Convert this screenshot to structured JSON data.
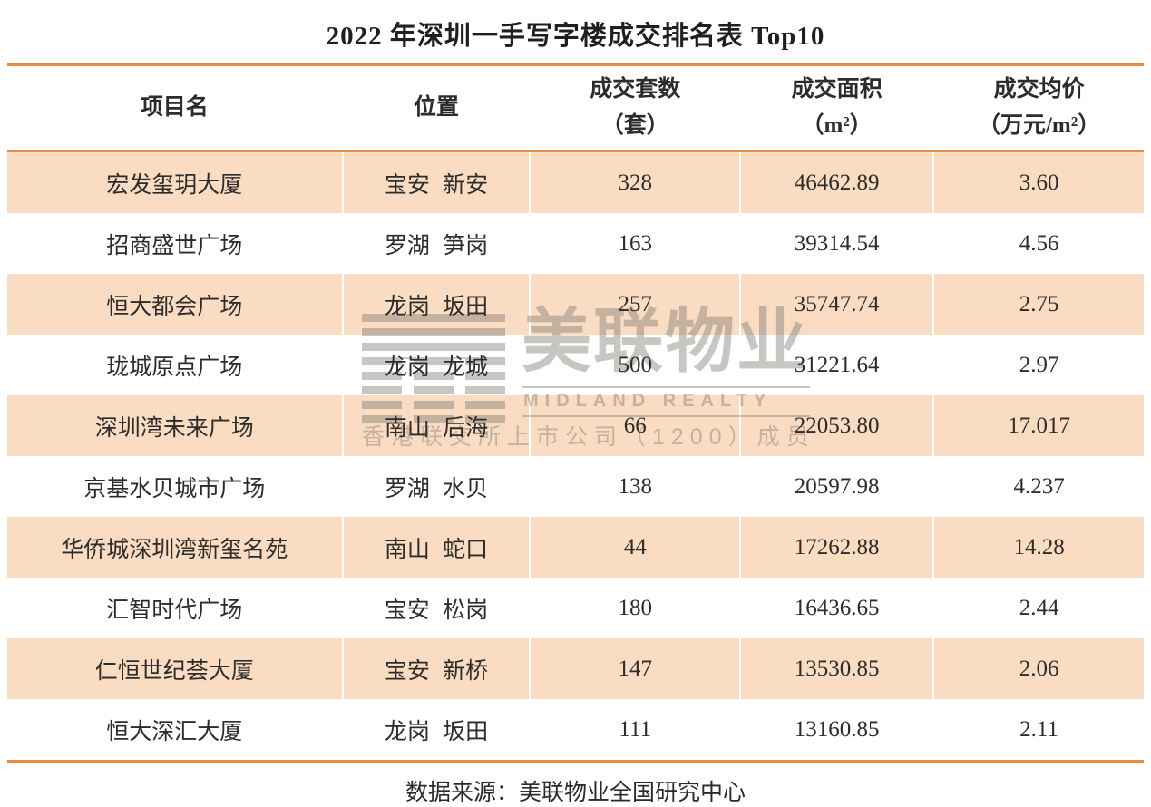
{
  "title": "2022 年深圳一手写字楼成交排名表 Top10",
  "footer": {
    "source": "数据来源：美联物业全国研究中心"
  },
  "watermark": {
    "logo_icon": "midland-stripes-logo",
    "name_cn": "美联物业",
    "name_en": "MIDLAND REALTY",
    "tagline": "香港联交所上市公司（1200）成员"
  },
  "colors": {
    "accent_border": "#E78C42",
    "row_highlight_bg": "#FADCC2",
    "text": "#2E2C2A",
    "watermark_gray": "#7D7873"
  },
  "table": {
    "headers": [
      {
        "line1": "项目名",
        "line2": ""
      },
      {
        "line1": "位置",
        "line2": ""
      },
      {
        "line1": "成交套数",
        "line2": "（套）"
      },
      {
        "line1": "成交面积",
        "line2": "（m²）"
      },
      {
        "line1": "成交均价",
        "line2": "（万元/m²）"
      }
    ],
    "rows": [
      [
        "宏发玺玥大厦",
        "宝安 新安",
        "328",
        "46462.89",
        "3.60"
      ],
      [
        "招商盛世广场",
        "罗湖 笋岗",
        "163",
        "39314.54",
        "4.56"
      ],
      [
        "恒大都会广场",
        "龙岗 坂田",
        "257",
        "35747.74",
        "2.75"
      ],
      [
        "珑城原点广场",
        "龙岗 龙城",
        "500",
        "31221.64",
        "2.97"
      ],
      [
        "深圳湾未来广场",
        "南山 后海",
        "66",
        "22053.80",
        "17.017"
      ],
      [
        "京基水贝城市广场",
        "罗湖 水贝",
        "138",
        "20597.98",
        "4.237"
      ],
      [
        "华侨城深圳湾新玺名苑",
        "南山 蛇口",
        "44",
        "17262.88",
        "14.28"
      ],
      [
        "汇智时代广场",
        "宝安 松岗",
        "180",
        "16436.65",
        "2.44"
      ],
      [
        "仁恒世纪荟大厦",
        "宝安 新桥",
        "147",
        "13530.85",
        "2.06"
      ],
      [
        "恒大深汇大厦",
        "龙岗 坂田",
        "111",
        "13160.85",
        "2.11"
      ]
    ]
  },
  "chart_data": {
    "type": "table",
    "title": "2022 年深圳一手写字楼成交排名表 Top10",
    "columns": [
      "项目名",
      "位置",
      "成交套数（套）",
      "成交面积（m²）",
      "成交均价（万元/m²）"
    ],
    "rows": [
      [
        "宏发玺玥大厦",
        "宝安 新安",
        328,
        46462.89,
        3.6
      ],
      [
        "招商盛世广场",
        "罗湖 笋岗",
        163,
        39314.54,
        4.56
      ],
      [
        "恒大都会广场",
        "龙岗 坂田",
        257,
        35747.74,
        2.75
      ],
      [
        "珑城原点广场",
        "龙岗 龙城",
        500,
        31221.64,
        2.97
      ],
      [
        "深圳湾未来广场",
        "南山 后海",
        66,
        22053.8,
        17.017
      ],
      [
        "京基水贝城市广场",
        "罗湖 水贝",
        138,
        20597.98,
        4.237
      ],
      [
        "华侨城深圳湾新玺名苑",
        "南山 蛇口",
        44,
        17262.88,
        14.28
      ],
      [
        "汇智时代广场",
        "宝安 松岗",
        180,
        16436.65,
        2.44
      ],
      [
        "仁恒世纪荟大厦",
        "宝安 新桥",
        147,
        13530.85,
        2.06
      ],
      [
        "恒大深汇大厦",
        "龙岗 坂田",
        111,
        13160.85,
        2.11
      ]
    ],
    "source_note": "数据来源：美联物业全国研究中心"
  }
}
